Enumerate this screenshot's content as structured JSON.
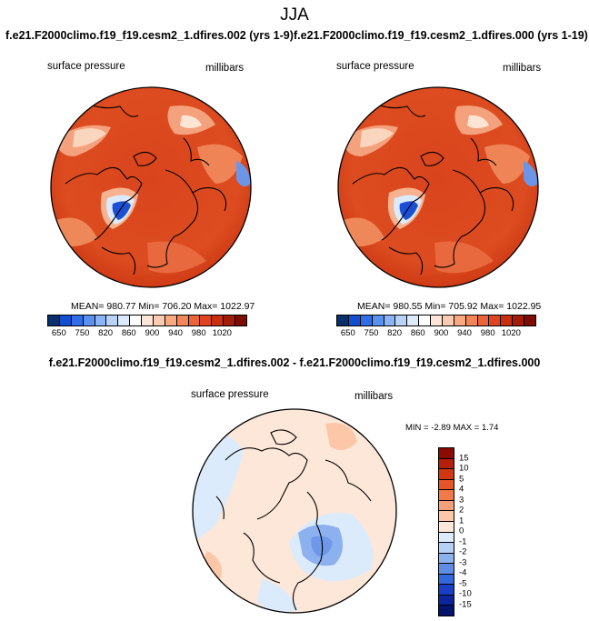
{
  "title": "JJA",
  "panels": [
    {
      "case_title": "f.e21.F2000climo.f19_f19.cesm2_1.dfires.002 (yrs 1-9)",
      "variable": "surface pressure",
      "units": "millibars",
      "stats": "MEAN= 980.77  Min= 706.20  Max= 1022.97"
    },
    {
      "case_title": "f.e21.F2000climo.f19_f19.cesm2_1.dfires.000 (yrs 1-19)",
      "variable": "surface pressure",
      "units": "millibars",
      "stats": "MEAN= 980.55  Min= 705.92  Max= 1022.95"
    }
  ],
  "colorbar_top": {
    "labels": [
      "650",
      "750",
      "820",
      "860",
      "900",
      "940",
      "980",
      "1020"
    ],
    "colors": [
      "#08306b",
      "#0f4fd0",
      "#2f6ee8",
      "#5a90f0",
      "#8ab4f7",
      "#b8d3f7",
      "#dcebfb",
      "#ffffff",
      "#fde6d8",
      "#fccab0",
      "#f9a882",
      "#f38656",
      "#ea6436",
      "#e0441f",
      "#c92e10",
      "#a31c08",
      "#7d0d04"
    ]
  },
  "diff": {
    "title": "f.e21.F2000climo.f19_f19.cesm2_1.dfires.002 - f.e21.F2000climo.f19_f19.cesm2_1.dfires.000",
    "variable": "surface pressure",
    "units": "millibars",
    "stats": "MIN =  -2.89 MAX =   1.74",
    "labels": [
      "15",
      "10",
      "5",
      "4",
      "3",
      "2",
      "1",
      "0",
      "-1",
      "-2",
      "-3",
      "-4",
      "-5",
      "-10",
      "-15"
    ],
    "colors": [
      "#8b0b00",
      "#b32006",
      "#d1380f",
      "#e45528",
      "#f07a4a",
      "#f8a07a",
      "#fcc7a9",
      "#fde7d8",
      "#dcebfb",
      "#b7d0f5",
      "#8db1ef",
      "#5f8de6",
      "#3567dc",
      "#1a3fc4",
      "#0c259c",
      "#04146e"
    ]
  }
}
